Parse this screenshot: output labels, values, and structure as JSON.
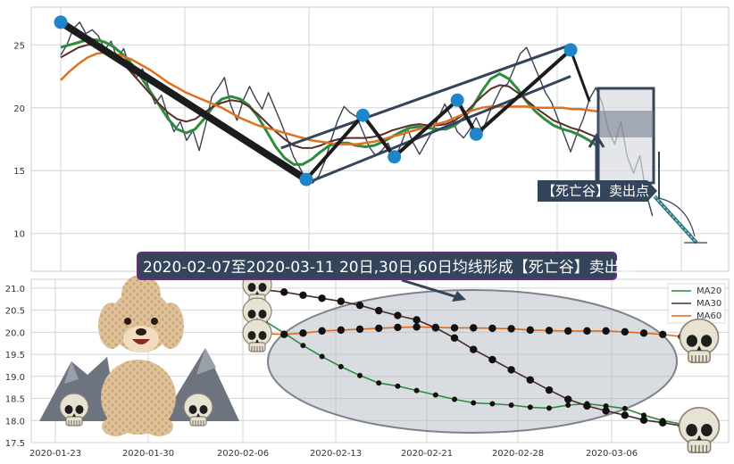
{
  "chart_data": [
    {
      "type": "line",
      "ylim": [
        7,
        28
      ],
      "yticks": [
        10,
        15,
        20,
        25
      ],
      "grid": true,
      "series": [
        {
          "values": [
            24.2,
            25.0,
            26.3,
            26.8,
            25.9,
            26.2,
            25.7,
            24.6,
            25.3,
            23.9,
            24.7,
            23.2,
            22.4,
            23.1,
            21.6,
            20.3,
            21.0,
            19.4,
            18.1,
            18.9,
            17.4,
            18.2,
            16.6,
            18.6,
            20.9,
            21.6,
            22.4,
            20.2,
            19.0,
            20.6,
            21.7,
            20.7,
            19.9,
            21.2,
            20.0,
            18.8,
            17.5,
            16.1,
            15.2,
            14.3,
            14.0,
            14.6,
            15.8,
            17.5,
            19.0,
            20.1,
            19.6,
            19.3,
            18.1,
            16.9,
            16.2,
            16.6,
            17.2,
            15.9,
            17.0,
            18.4,
            17.2,
            16.3,
            17.2,
            18.1,
            19.2,
            20.3,
            19.3,
            18.1,
            17.6,
            18.3,
            19.2,
            18.1,
            19.5,
            20.6,
            21.6,
            21.9,
            23.1,
            24.3,
            24.8,
            23.6,
            22.4,
            21.2,
            20.4,
            19.1,
            17.8,
            16.5,
            17.9,
            19.1,
            20.7,
            21.6,
            20.4,
            18.2,
            17.1,
            18.9,
            16.1,
            14.8,
            16.2,
            13.2,
            11.4
          ]
        },
        {
          "values": [
            24.8,
            25.0,
            25.2,
            25.4,
            25.4,
            25.2,
            24.8,
            24.2,
            23.4,
            22.4,
            21.3,
            20.2,
            19.1,
            18.3,
            18.0,
            18.3,
            19.1,
            20.1,
            20.7,
            20.9,
            20.7,
            20.2,
            19.3,
            18.1,
            16.9,
            16.0,
            15.5,
            15.5,
            15.9,
            16.5,
            17.0,
            17.2,
            17.2,
            17.0,
            16.9,
            17.0,
            17.3,
            17.7,
            18.1,
            18.4,
            18.5,
            18.4,
            18.3,
            18.3,
            18.6,
            19.2,
            20.1,
            21.3,
            22.3,
            22.7,
            22.3,
            21.5,
            20.5,
            19.7,
            19.1,
            18.6,
            18.3,
            18.1,
            17.8,
            17.4,
            16.9
          ]
        },
        {
          "values": [
            24.0,
            24.4,
            24.8,
            25.0,
            25.0,
            24.7,
            24.2,
            23.5,
            22.7,
            21.9,
            21.1,
            20.3,
            19.6,
            19.1,
            18.9,
            19.1,
            19.6,
            20.1,
            20.4,
            20.6,
            20.5,
            20.1,
            19.5,
            18.8,
            18.1,
            17.5,
            17.0,
            16.8,
            16.8,
            17.0,
            17.3,
            17.5,
            17.6,
            17.6,
            17.6,
            17.7,
            17.9,
            18.2,
            18.4,
            18.6,
            18.7,
            18.6,
            18.6,
            18.7,
            19.0,
            19.5,
            20.2,
            20.9,
            21.5,
            21.8,
            21.7,
            21.2,
            20.6,
            20.0,
            19.5,
            19.0,
            18.7,
            18.4,
            18.2,
            17.9,
            17.6
          ]
        },
        {
          "values": [
            22.2,
            22.9,
            23.5,
            24.0,
            24.3,
            24.4,
            24.3,
            24.1,
            23.8,
            23.4,
            23.0,
            22.5,
            22.0,
            21.6,
            21.2,
            20.9,
            20.6,
            20.3,
            20.0,
            19.6,
            19.2,
            18.9,
            18.6,
            18.4,
            18.2,
            18.0,
            17.8,
            17.6,
            17.4,
            17.3,
            17.2,
            17.1,
            17.1,
            17.1,
            17.2,
            17.3,
            17.5,
            17.7,
            17.9,
            18.1,
            18.3,
            18.5,
            18.7,
            18.9,
            19.2,
            19.5,
            19.8,
            20.0,
            20.1,
            20.1,
            20.1,
            20.1,
            20.1,
            20.0,
            20.0,
            20.0,
            20.0,
            19.9,
            19.9,
            19.8,
            19.7
          ]
        }
      ],
      "zigzag": {
        "points": [
          [
            0,
            26.8
          ],
          [
            39,
            14.3
          ],
          [
            48,
            19.4
          ],
          [
            53,
            16.1
          ],
          [
            63,
            20.6
          ],
          [
            66,
            17.9
          ],
          [
            81,
            24.6
          ]
        ]
      },
      "callout": "【死亡谷】卖出点"
    },
    {
      "type": "line",
      "ylim": [
        17.5,
        21.2
      ],
      "yticks": [
        17.5,
        18.0,
        18.5,
        19.0,
        19.5,
        20.0,
        20.5,
        21.0
      ],
      "xticklabels": [
        "2020-01-23",
        "2020-01-30",
        "2020-02-06",
        "2020-02-13",
        "2020-02-21",
        "2020-02-28",
        "2020-03-06"
      ],
      "grid": true,
      "legend": "top-right",
      "banner": "2020-02-07至2020-03-11 20日,30日,60日均线形成【死亡谷】卖出点",
      "series": [
        {
          "name": "MA20",
          "color": "#2e8b3e",
          "values": [
            20.25,
            19.98,
            19.7,
            19.45,
            19.22,
            19.02,
            18.85,
            18.78,
            18.68,
            18.58,
            18.48,
            18.4,
            18.38,
            18.35,
            18.3,
            18.28,
            18.35,
            18.38,
            18.33,
            18.27,
            18.12,
            18.0,
            17.92
          ]
        },
        {
          "name": "MA30",
          "color": "#4a2a25",
          "values": [
            20.96,
            20.91,
            20.84,
            20.77,
            20.7,
            20.61,
            20.49,
            20.38,
            20.28,
            20.1,
            19.87,
            19.61,
            19.38,
            19.15,
            18.92,
            18.69,
            18.48,
            18.33,
            18.22,
            18.12,
            18.01,
            17.95,
            17.88
          ]
        },
        {
          "name": "MA60",
          "color": "#e06a1a",
          "values": [
            19.97,
            19.95,
            19.98,
            20.03,
            20.05,
            20.07,
            20.09,
            20.11,
            20.12,
            20.11,
            20.1,
            20.1,
            20.09,
            20.08,
            20.05,
            20.04,
            20.03,
            20.03,
            20.03,
            20.01,
            19.98,
            19.95,
            19.9
          ]
        }
      ]
    }
  ]
}
